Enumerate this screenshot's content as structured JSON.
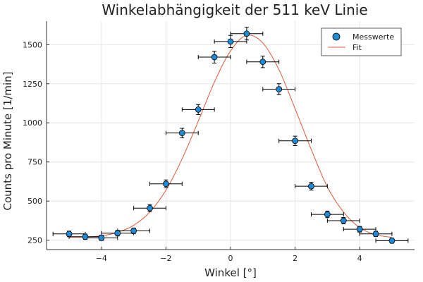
{
  "chart_data": {
    "type": "scatter",
    "title": "Winkelabhängigkeit der 511 keV Linie",
    "xlabel": "Winkel [°]",
    "ylabel": "Counts pro Minute [1/min]",
    "xlim": [
      -5.7,
      5.7
    ],
    "ylim": [
      190,
      1650
    ],
    "xticks": [
      -4,
      -2,
      0,
      2,
      4
    ],
    "yticks": [
      250,
      500,
      750,
      1000,
      1250,
      1500
    ],
    "grid": true,
    "legend_position": "top-right",
    "colors": {
      "points": "#1f8ad6",
      "fit": "#e05a3a",
      "errorbars": "#000000"
    },
    "series": [
      {
        "name": "Messwerte",
        "kind": "scatter-errorbars",
        "x": [
          -5.0,
          -4.5,
          -4.0,
          -3.5,
          -3.0,
          -2.5,
          -2.0,
          -1.5,
          -1.0,
          -0.5,
          0.0,
          0.5,
          1.0,
          1.5,
          2.0,
          2.5,
          3.0,
          3.5,
          4.0,
          4.5,
          5.0
        ],
        "y": [
          290,
          272,
          265,
          295,
          310,
          455,
          610,
          935,
          1085,
          1420,
          1520,
          1570,
          1390,
          1215,
          885,
          595,
          415,
          375,
          320,
          290,
          247
        ],
        "xerr": [
          0.5,
          0.5,
          0.5,
          0.5,
          0.5,
          0.5,
          0.5,
          0.5,
          0.5,
          0.5,
          0.5,
          0.5,
          0.5,
          0.5,
          0.5,
          0.5,
          0.5,
          0.5,
          0.5,
          0.5,
          0.5
        ],
        "yerr": [
          18,
          17,
          17,
          18,
          18,
          22,
          25,
          30,
          32,
          38,
          39,
          40,
          37,
          35,
          30,
          25,
          21,
          20,
          18,
          17,
          16
        ]
      },
      {
        "name": "Fit",
        "kind": "line",
        "x": [
          -5.0,
          -4.5,
          -4.0,
          -3.5,
          -3.0,
          -2.5,
          -2.0,
          -1.5,
          -1.0,
          -0.5,
          0.0,
          0.5,
          1.0,
          1.5,
          2.0,
          2.5,
          3.0,
          3.5,
          4.0,
          4.5,
          5.0
        ],
        "y": [
          268,
          270,
          278,
          300,
          345,
          430,
          570,
          770,
          1010,
          1260,
          1460,
          1560,
          1510,
          1340,
          1090,
          830,
          590,
          430,
          330,
          285,
          268
        ]
      }
    ]
  }
}
